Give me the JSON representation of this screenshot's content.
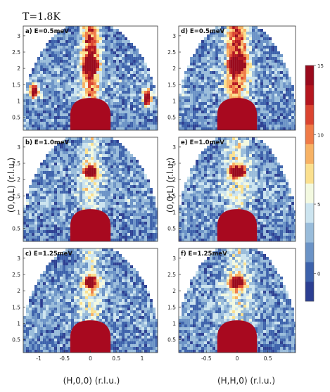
{
  "figure": {
    "title": "T=1.8K"
  },
  "chart_data": {
    "type": "heatmap",
    "colorbar": {
      "ticks": [
        "15",
        "10",
        "5",
        "0"
      ],
      "tick_values": [
        15,
        10,
        5,
        0
      ],
      "range": [
        -2,
        15
      ],
      "colors": [
        "#2c3f92",
        "#3d62ab",
        "#6b93c6",
        "#99bcda",
        "#cce4ef",
        "#f3f9e0",
        "#fbe08e",
        "#f7b264",
        "#ef7b47",
        "#da4430",
        "#b4161f",
        "#990a1d"
      ]
    },
    "ylabel_left": "(0,0,L) (r.l.u.)",
    "ylabel_right": "(0,0,L) (r.l.u.)",
    "xlabel_left": "(H,0,0) (r.l.u.)",
    "xlabel_right": "(H,H,0) (r.l.u.)",
    "panels": [
      {
        "label": "a)  E=0.5meV",
        "x_range": [
          -1.3,
          1.3
        ],
        "y_range": [
          0.1,
          3.3
        ],
        "y_ticks": [
          "3",
          "2.5",
          "2",
          "1.5",
          "1",
          "0.5"
        ],
        "y_tick_values": [
          3,
          2.5,
          2,
          1.5,
          1,
          0.5
        ],
        "x_ticks": [],
        "x_tick_values": []
      },
      {
        "label": "d)  E=0.5meV",
        "x_range": [
          -0.95,
          0.95
        ],
        "y_range": [
          0.1,
          3.3
        ],
        "y_ticks": [
          "3",
          "2.5",
          "2",
          "1.5",
          "1",
          "0.5"
        ],
        "y_tick_values": [
          3,
          2.5,
          2,
          1.5,
          1,
          0.5
        ],
        "x_ticks": [],
        "x_tick_values": []
      },
      {
        "label": "b)  E=1.0meV",
        "x_range": [
          -1.3,
          1.3
        ],
        "y_range": [
          0.1,
          3.3
        ],
        "y_ticks": [
          "3",
          "2.5",
          "2",
          "1.5",
          "1",
          "0.5"
        ],
        "y_tick_values": [
          3,
          2.5,
          2,
          1.5,
          1,
          0.5
        ],
        "x_ticks": [],
        "x_tick_values": []
      },
      {
        "label": "e)  E=1.0meV",
        "x_range": [
          -0.95,
          0.95
        ],
        "y_range": [
          0.1,
          3.3
        ],
        "y_ticks": [
          "3",
          "2.5",
          "2",
          "1.5",
          "1",
          "0.5"
        ],
        "y_tick_values": [
          3,
          2.5,
          2,
          1.5,
          1,
          0.5
        ],
        "x_ticks": [],
        "x_tick_values": []
      },
      {
        "label": "c)  E=1.25meV",
        "x_range": [
          -1.3,
          1.3
        ],
        "y_range": [
          0.1,
          3.3
        ],
        "y_ticks": [
          "3",
          "2.5",
          "2",
          "1.5",
          "1",
          "0.5"
        ],
        "y_tick_values": [
          3,
          2.5,
          2,
          1.5,
          1,
          0.5
        ],
        "x_ticks": [
          "-1",
          "-0.5",
          "0",
          "0.5",
          "1"
        ],
        "x_tick_values": [
          -1,
          -0.5,
          0,
          0.5,
          1
        ]
      },
      {
        "label": "f)  E=1.25meV",
        "x_range": [
          -0.95,
          0.95
        ],
        "y_range": [
          0.1,
          3.3
        ],
        "y_ticks": [
          "3",
          "2.5",
          "2",
          "1.5",
          "1",
          "0.5"
        ],
        "y_tick_values": [
          3,
          2.5,
          2,
          1.5,
          1,
          0.5
        ],
        "x_ticks": [
          "-0.5",
          "0",
          "0.5"
        ],
        "x_tick_values": [
          -0.5,
          0,
          0.5
        ]
      }
    ]
  }
}
